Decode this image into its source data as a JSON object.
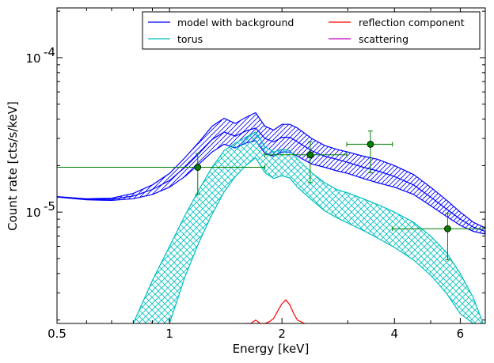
{
  "chart_data": {
    "type": "line",
    "xlabel": "Energy [keV]",
    "ylabel": "Count rate [cts/s/keV]",
    "x_scale": "log",
    "y_scale": "log",
    "xlim": [
      0.5,
      7.0
    ],
    "ylim": [
      1.9e-06,
      0.00021
    ],
    "x_ticks": [
      {
        "value": 0.5,
        "label": "0.5"
      },
      {
        "value": 1,
        "label": "1"
      },
      {
        "value": 2,
        "label": "2"
      },
      {
        "value": 4,
        "label": "4"
      },
      {
        "value": 6,
        "label": "6"
      }
    ],
    "y_ticks": [
      {
        "value": 1e-05,
        "base": "10",
        "exp": "-5"
      },
      {
        "value": 0.0001,
        "base": "10",
        "exp": "-4"
      }
    ],
    "grid": false,
    "legend": {
      "placement": "top-right",
      "columns": 2,
      "entries": [
        {
          "label": "model with background",
          "color": "#0000ff"
        },
        {
          "label": "reflection component",
          "color": "#ff0000"
        },
        {
          "label": "torus",
          "color": "#00bfbf"
        },
        {
          "label": "scattering",
          "color": "#bf00bf"
        }
      ]
    },
    "series": [
      {
        "name": "model with background",
        "color": "#0000ff",
        "x": [
          0.5,
          0.6,
          0.7,
          0.8,
          0.9,
          1.0,
          1.1,
          1.2,
          1.3,
          1.4,
          1.5,
          1.6,
          1.7,
          1.8,
          1.9,
          2.0,
          2.1,
          2.2,
          2.4,
          2.6,
          2.8,
          3.0,
          3.3,
          3.6,
          4.0,
          4.5,
          5.0,
          5.5,
          6.0,
          6.5,
          7.0
        ],
        "upper": [
          1.26e-05,
          1.22e-05,
          1.23e-05,
          1.32e-05,
          1.5e-05,
          1.78e-05,
          2.25e-05,
          2.85e-05,
          3.6e-05,
          4.05e-05,
          3.75e-05,
          4.1e-05,
          4.4e-05,
          3.6e-05,
          3.4e-05,
          3.7e-05,
          3.7e-05,
          3.5e-05,
          3e-05,
          2.7e-05,
          2.55e-05,
          2.45e-05,
          2.3e-05,
          2.2e-05,
          2e-05,
          1.75e-05,
          1.45e-05,
          1.2e-05,
          1e-05,
          8.6e-06,
          7.9e-06
        ],
        "mid": [
          1.25e-05,
          1.21e-05,
          1.21e-05,
          1.27e-05,
          1.4e-05,
          1.6e-05,
          1.95e-05,
          2.4e-05,
          2.95e-05,
          3.3e-05,
          3.1e-05,
          3.35e-05,
          3.5e-05,
          3e-05,
          2.85e-05,
          3.05e-05,
          3.05e-05,
          2.85e-05,
          2.5e-05,
          2.3e-05,
          2.2e-05,
          2.1e-05,
          1.95e-05,
          1.85e-05,
          1.7e-05,
          1.5e-05,
          1.25e-05,
          1.05e-05,
          9e-06,
          8e-06,
          7.5e-06
        ],
        "lower": [
          1.25e-05,
          1.2e-05,
          1.19e-05,
          1.22e-05,
          1.3e-05,
          1.45e-05,
          1.7e-05,
          2.05e-05,
          2.45e-05,
          2.75e-05,
          2.6e-05,
          2.8e-05,
          2.9e-05,
          2.4e-05,
          2.3e-05,
          2.45e-05,
          2.45e-05,
          2.3e-05,
          2.05e-05,
          1.95e-05,
          1.85e-05,
          1.78e-05,
          1.65e-05,
          1.55e-05,
          1.45e-05,
          1.3e-05,
          1.1e-05,
          9.4e-06,
          8.2e-06,
          7.5e-06,
          7.2e-06
        ]
      },
      {
        "name": "torus",
        "color": "#00bfbf",
        "x": [
          0.8,
          0.9,
          1.0,
          1.1,
          1.2,
          1.3,
          1.4,
          1.5,
          1.6,
          1.7,
          1.8,
          1.9,
          2.0,
          2.1,
          2.2,
          2.4,
          2.6,
          2.8,
          3.0,
          3.3,
          3.6,
          4.0,
          4.5,
          5.0,
          5.5,
          6.0,
          6.5,
          6.9
        ],
        "upper": [
          1.9e-06,
          3.6e-06,
          6e-06,
          9.5e-06,
          1.4e-05,
          1.95e-05,
          2.5e-05,
          2.8e-05,
          3.05e-05,
          3.3e-05,
          2.65e-05,
          2.45e-05,
          2.55e-05,
          2.5e-05,
          2.2e-05,
          1.8e-05,
          1.55e-05,
          1.4e-05,
          1.33e-05,
          1.22e-05,
          1.12e-05,
          1e-05,
          8.6e-06,
          7e-06,
          5.5e-06,
          4e-06,
          2.8e-06,
          1.9e-06
        ],
        "lower": [
          null,
          null,
          1.9e-06,
          3.8e-06,
          6.4e-06,
          9.7e-06,
          1.35e-05,
          1.7e-05,
          2e-05,
          2.25e-05,
          1.8e-05,
          1.65e-05,
          1.72e-05,
          1.66e-05,
          1.45e-05,
          1.2e-05,
          1.02e-05,
          9.2e-06,
          8.5e-06,
          7.6e-06,
          6.8e-06,
          5.9e-06,
          4.9e-06,
          3.9e-06,
          3e-06,
          2.2e-06,
          1.9e-06,
          null
        ]
      },
      {
        "name": "reflection component",
        "color": "#ff0000",
        "x": [
          1.6,
          1.65,
          1.7,
          1.75,
          1.8,
          1.85,
          1.9,
          1.95,
          2.0,
          2.05,
          2.1,
          2.15,
          2.2,
          2.3
        ],
        "y": [
          1.9e-06,
          1.9e-06,
          2e-06,
          1.9e-06,
          1.9e-06,
          1.95e-06,
          2.05e-06,
          2.3e-06,
          2.55e-06,
          2.7e-06,
          2.5e-06,
          2.2e-06,
          2e-06,
          1.9e-06
        ]
      },
      {
        "name": "data",
        "color": "#008000",
        "points": [
          {
            "x": 1.19,
            "y": 1.95e-05,
            "xerr": [
              0.5,
              1.8
            ],
            "yerr": [
              1.3e-05,
              2.4e-05
            ]
          },
          {
            "x": 2.38,
            "y": 2.35e-05,
            "xerr": [
              1.8,
              2.98
            ],
            "yerr": [
              1.55e-05,
              2.85e-05
            ]
          },
          {
            "x": 3.45,
            "y": 2.75e-05,
            "xerr": [
              2.98,
              3.95
            ],
            "yerr": [
              1.8e-05,
              3.35e-05
            ]
          },
          {
            "x": 5.55,
            "y": 7.8e-06,
            "xerr": [
              3.95,
              7.0
            ],
            "yerr": [
              4.9e-06,
              9.8e-06
            ]
          }
        ]
      }
    ]
  }
}
